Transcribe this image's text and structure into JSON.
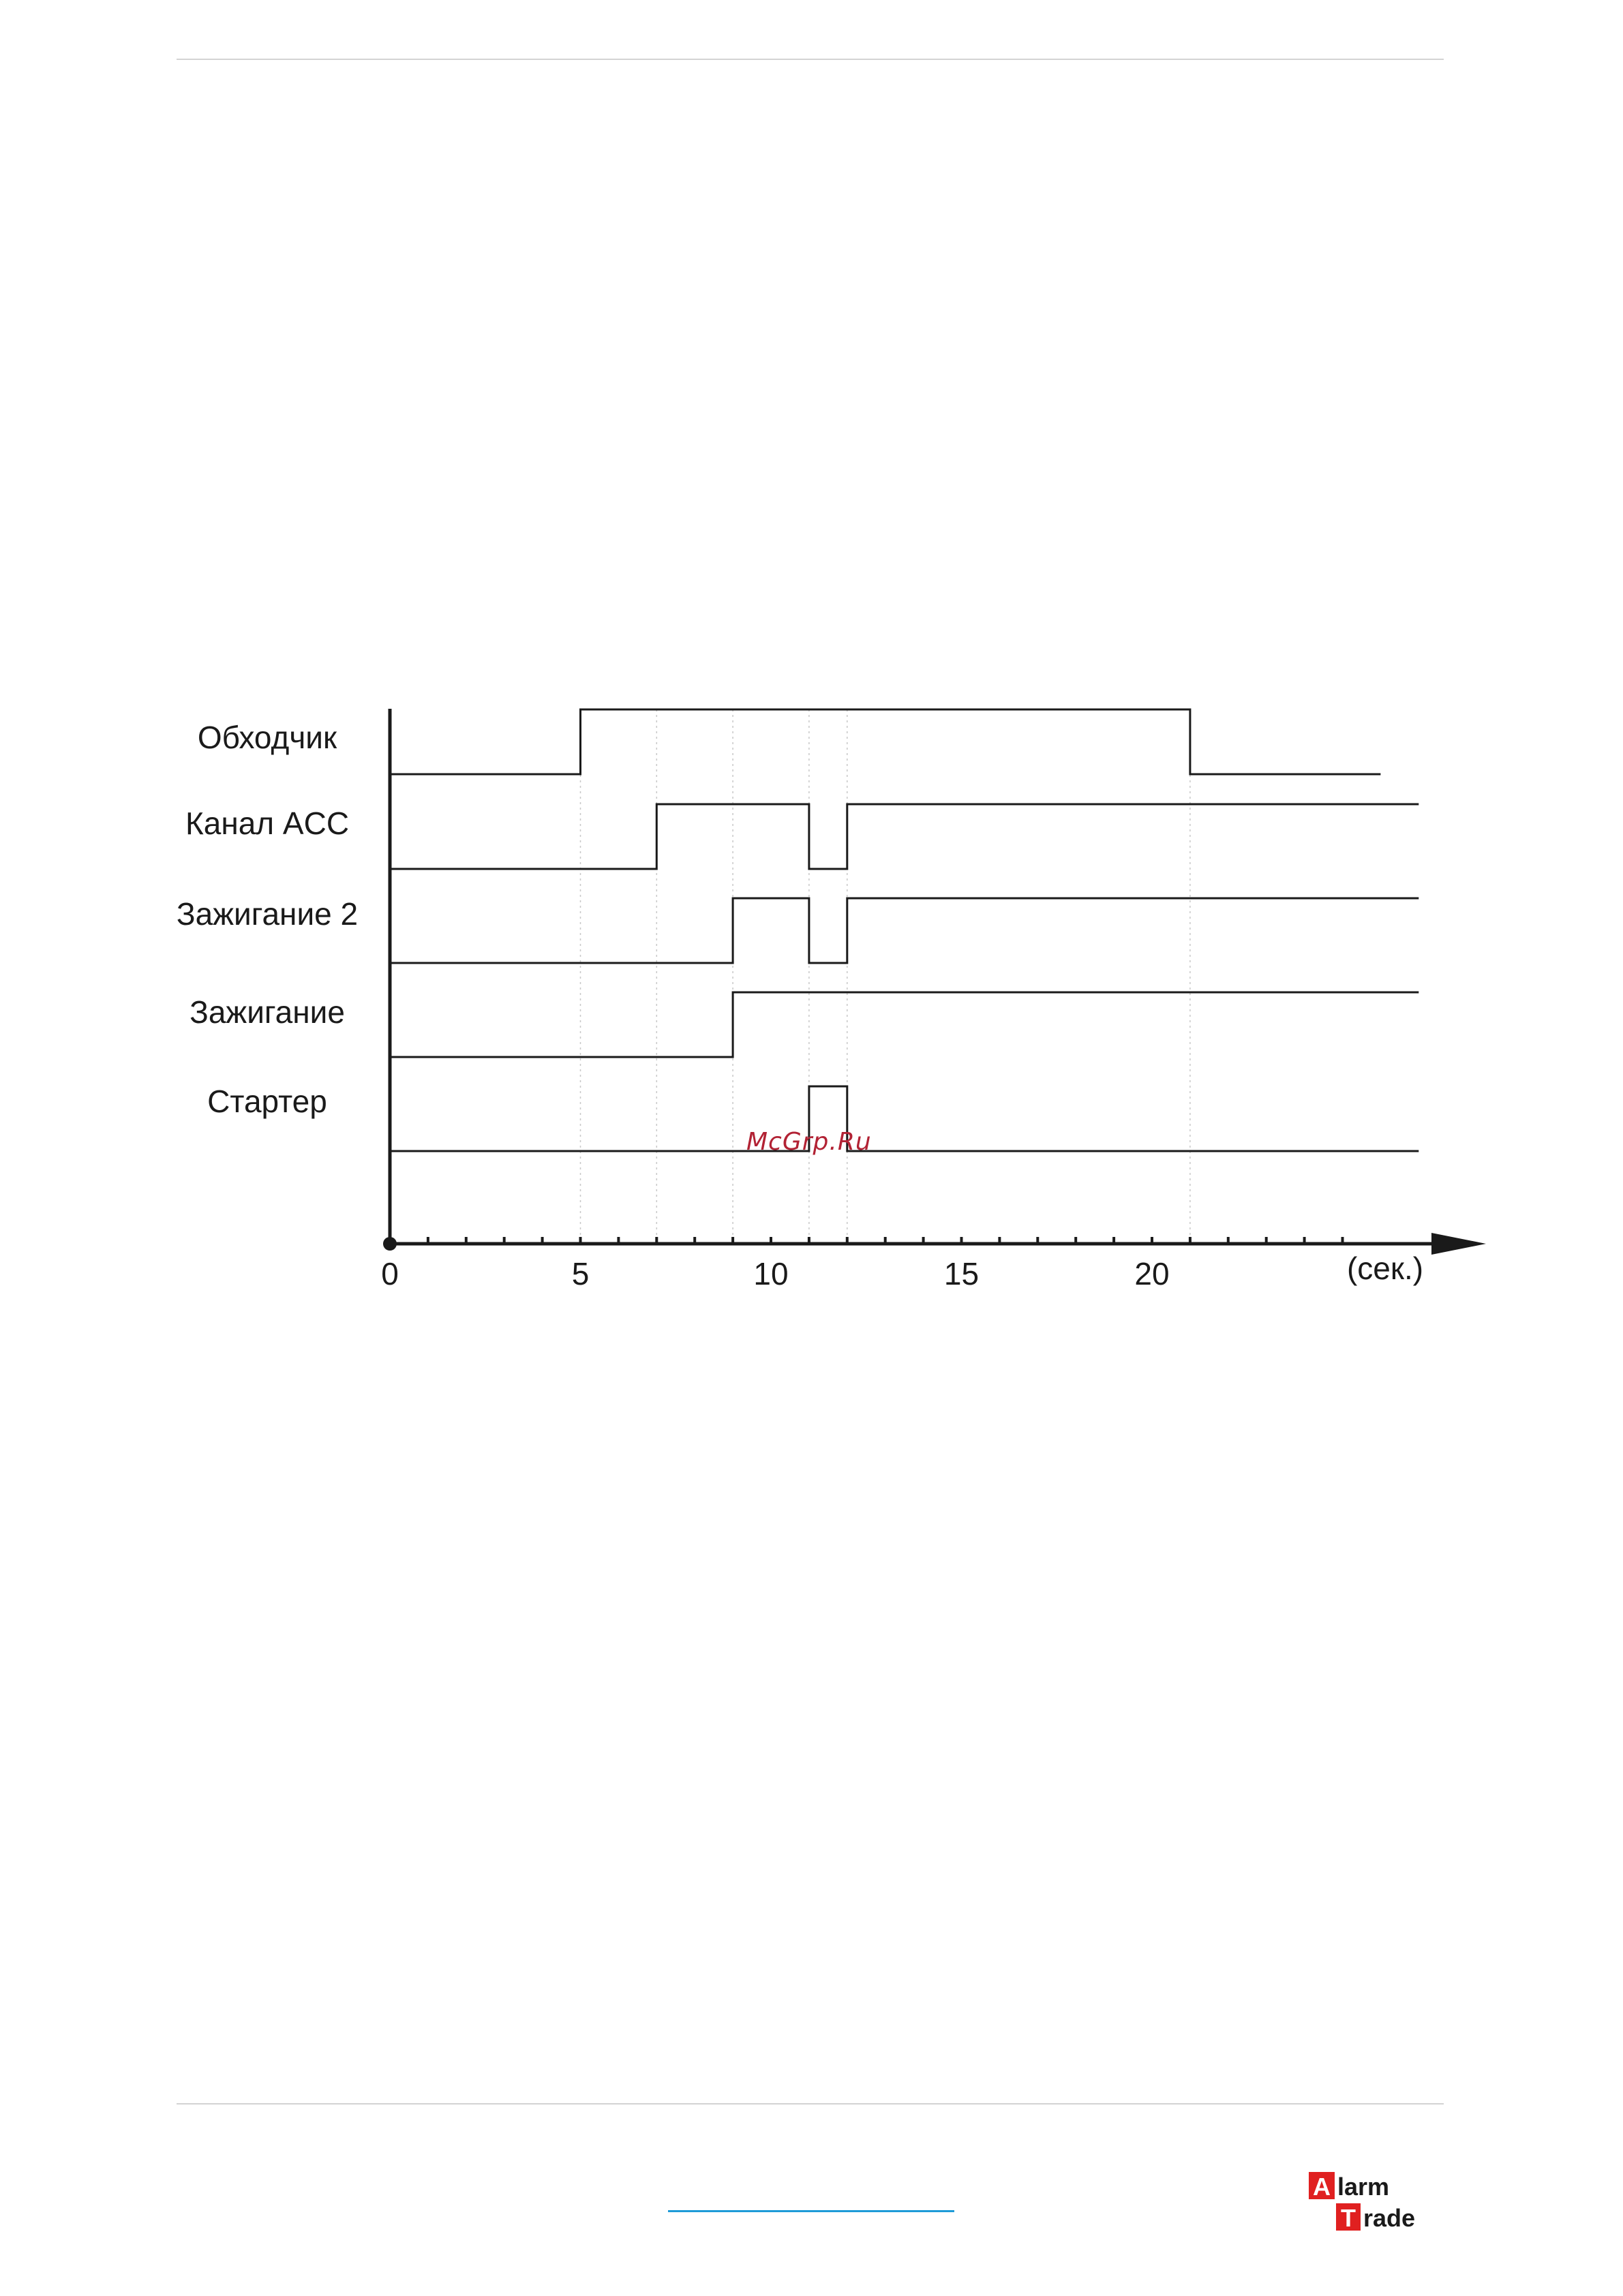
{
  "page": {
    "watermark": "McGrp.Ru"
  },
  "logo": {
    "word1": "Alarm",
    "word2": "Trade",
    "accent_color": "#e02020",
    "text_color": "#1a1a1a"
  },
  "footer": {
    "link_color": "#1e9bd7"
  },
  "chart_data": {
    "type": "timing",
    "x_unit": "(сек.)",
    "x_ticks": [
      0,
      5,
      10,
      15,
      20
    ],
    "x_tick_labels": [
      "0",
      "5",
      "10",
      "15",
      "20"
    ],
    "xlim": [
      0,
      27
    ],
    "grid": false,
    "line_color": "#1a1a1a",
    "signals": [
      {
        "name": "Обходчик",
        "end": 26,
        "transitions": [
          [
            0,
            0
          ],
          [
            5,
            1
          ],
          [
            21,
            0
          ]
        ]
      },
      {
        "name": "Канал ACC",
        "end": 27,
        "transitions": [
          [
            0,
            0
          ],
          [
            7,
            1
          ],
          [
            11,
            0
          ],
          [
            12,
            1
          ]
        ]
      },
      {
        "name": "Зажигание 2",
        "end": 27,
        "transitions": [
          [
            0,
            0
          ],
          [
            9,
            1
          ],
          [
            11,
            0
          ],
          [
            12,
            1
          ]
        ]
      },
      {
        "name": "Зажигание",
        "end": 27,
        "transitions": [
          [
            0,
            0
          ],
          [
            9,
            1
          ]
        ]
      },
      {
        "name": "Стартер",
        "end": 27,
        "transitions": [
          [
            0,
            0
          ],
          [
            11,
            1
          ],
          [
            12,
            0
          ]
        ]
      }
    ]
  }
}
